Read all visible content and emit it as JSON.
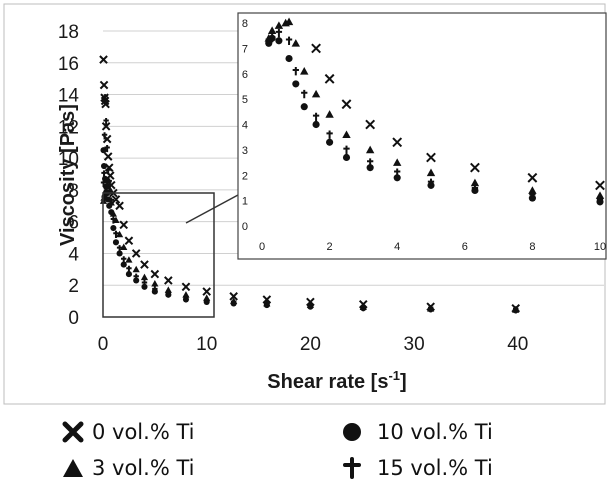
{
  "chart_data": [
    {
      "type": "scatter",
      "title": "",
      "xlabel": "Shear rate [s-1]",
      "xlabel_base": "Shear rate [s",
      "xlabel_sup": "-1",
      "xlabel_tail": "]",
      "ylabel": "Viscosity [Pas]",
      "xlim": [
        0,
        46
      ],
      "ylim": [
        0,
        18
      ],
      "xticks": [
        "0",
        "10",
        "20",
        "30",
        "40"
      ],
      "xtick_values": [
        0,
        10,
        20,
        30,
        40
      ],
      "yticks": [
        "0",
        "2",
        "4",
        "6",
        "8",
        "10",
        "12",
        "14",
        "16",
        "18"
      ],
      "ytick_values": [
        0,
        2,
        4,
        6,
        8,
        10,
        12,
        14,
        16,
        18
      ],
      "grid": "horizontal",
      "series": [
        {
          "name": "0 vol.% Ti",
          "marker": "x",
          "x": [
            0.05,
            0.1,
            0.15,
            0.2,
            0.25,
            0.3,
            0.4,
            0.5,
            0.6,
            0.7,
            0.8,
            1.0,
            1.25,
            1.6,
            2.0,
            2.5,
            3.2,
            4.0,
            5.0,
            6.3,
            8.0,
            10.0,
            12.6,
            15.8,
            20.0,
            25.1,
            31.6,
            39.8
          ],
          "y": [
            16.2,
            14.6,
            13.8,
            13.6,
            13.4,
            12.0,
            11.2,
            10.1,
            9.4,
            8.9,
            8.3,
            7.8,
            7.4,
            7.0,
            5.8,
            4.8,
            4.0,
            3.3,
            2.7,
            2.3,
            1.9,
            1.6,
            1.3,
            1.1,
            0.95,
            0.8,
            0.65,
            0.55
          ]
        },
        {
          "name": "3 vol.% Ti",
          "marker": "triangle",
          "x": [
            0.05,
            0.1,
            0.15,
            0.2,
            0.3,
            0.4,
            0.5,
            0.6,
            0.7,
            0.8,
            1.0,
            1.25,
            1.6,
            2.0,
            2.5,
            3.2,
            4.0,
            5.0,
            6.3,
            8.0,
            10.0,
            12.6,
            15.8,
            20.0,
            25.1,
            31.6,
            39.8
          ],
          "y": [
            7.3,
            7.5,
            7.7,
            7.8,
            8.0,
            8.3,
            8.6,
            7.9,
            8.0,
            7.2,
            6.5,
            6.1,
            5.2,
            4.4,
            3.6,
            3.0,
            2.5,
            2.1,
            1.7,
            1.4,
            1.2,
            1.0,
            0.85,
            0.75,
            0.62,
            0.52,
            0.45
          ]
        },
        {
          "name": "10 vol.% Ti",
          "marker": "circle",
          "x": [
            0.05,
            0.1,
            0.2,
            0.3,
            0.4,
            0.5,
            0.6,
            0.8,
            1.0,
            1.25,
            1.6,
            2.0,
            2.5,
            3.2,
            4.0,
            5.0,
            6.3,
            8.0,
            10.0,
            12.6,
            15.8,
            20.0,
            25.1,
            31.6,
            39.8
          ],
          "y": [
            10.5,
            9.5,
            8.7,
            8.2,
            7.8,
            7.4,
            7.0,
            6.6,
            5.6,
            4.7,
            4.0,
            3.3,
            2.7,
            2.3,
            1.9,
            1.6,
            1.4,
            1.1,
            0.95,
            0.85,
            0.75,
            0.65,
            0.55,
            0.48,
            0.42
          ]
        },
        {
          "name": "15 vol.% Ti",
          "marker": "plus",
          "x": [
            0.05,
            0.1,
            0.15,
            0.2,
            0.3,
            0.4,
            0.5,
            0.6,
            0.8,
            1.0,
            1.25,
            1.6,
            2.0,
            2.5,
            3.2,
            4.0,
            5.0,
            6.3,
            8.0,
            10.0,
            12.6,
            15.8,
            20.0,
            25.1,
            31.6,
            39.8
          ],
          "y": [
            8.4,
            9.0,
            11.4,
            13.8,
            12.3,
            10.6,
            9.2,
            8.5,
            7.3,
            6.1,
            5.2,
            4.3,
            3.6,
            3.0,
            2.5,
            2.1,
            1.7,
            1.45,
            1.2,
            1.0,
            0.9,
            0.8,
            0.7,
            0.6,
            0.52,
            0.45
          ]
        }
      ]
    },
    {
      "type": "scatter",
      "title": "",
      "xlabel": "",
      "ylabel": "",
      "xlim": [
        0,
        10
      ],
      "ylim": [
        0,
        8
      ],
      "xticks": [
        "0",
        "2",
        "4",
        "6",
        "8",
        "10"
      ],
      "xtick_values": [
        0,
        2,
        4,
        6,
        8,
        10
      ],
      "yticks": [
        "0",
        "1",
        "2",
        "3",
        "4",
        "5",
        "6",
        "7",
        "8"
      ],
      "ytick_values": [
        0,
        1,
        2,
        3,
        4,
        5,
        6,
        7,
        8
      ],
      "grid": "none",
      "series": [
        {
          "name": "0 vol.% Ti",
          "marker": "x",
          "x": [
            1.6,
            2.0,
            2.5,
            3.2,
            4.0,
            5.0,
            6.3,
            8.0,
            10.0
          ],
          "y": [
            7.0,
            5.8,
            4.8,
            4.0,
            3.3,
            2.7,
            2.3,
            1.9,
            1.6
          ]
        },
        {
          "name": "3 vol.% Ti",
          "marker": "triangle",
          "x": [
            0.2,
            0.3,
            0.5,
            0.7,
            0.8,
            1.0,
            1.25,
            1.6,
            2.0,
            2.5,
            3.2,
            4.0,
            5.0,
            6.3,
            8.0,
            10.0
          ],
          "y": [
            7.4,
            7.7,
            7.9,
            8.0,
            8.05,
            7.2,
            6.1,
            5.2,
            4.4,
            3.6,
            3.0,
            2.5,
            2.1,
            1.7,
            1.4,
            1.2
          ]
        },
        {
          "name": "10 vol.% Ti",
          "marker": "circle",
          "x": [
            0.2,
            0.3,
            0.5,
            0.8,
            1.0,
            1.25,
            1.6,
            2.0,
            2.5,
            3.2,
            4.0,
            5.0,
            6.3,
            8.0,
            10.0
          ],
          "y": [
            7.2,
            7.4,
            7.3,
            6.6,
            5.6,
            4.7,
            4.0,
            3.3,
            2.7,
            2.3,
            1.9,
            1.6,
            1.4,
            1.1,
            0.95
          ]
        },
        {
          "name": "15 vol.% Ti",
          "marker": "plus",
          "x": [
            0.2,
            0.3,
            0.5,
            0.8,
            1.0,
            1.25,
            1.6,
            2.0,
            2.5,
            3.2,
            4.0,
            5.0,
            6.3,
            8.0,
            10.0
          ],
          "y": [
            7.3,
            7.4,
            7.6,
            7.3,
            6.1,
            5.2,
            4.3,
            3.6,
            3.0,
            2.5,
            2.1,
            1.7,
            1.45,
            1.2,
            1.0
          ]
        }
      ]
    }
  ],
  "legend": {
    "items": [
      {
        "label": "0 vol.% Ti",
        "marker": "x"
      },
      {
        "label": "10 vol.% Ti",
        "marker": "circle"
      },
      {
        "label": "3 vol.% Ti",
        "marker": "triangle"
      },
      {
        "label": "15 vol.% Ti",
        "marker": "plus"
      }
    ]
  },
  "colors": {
    "marker": "#111111",
    "grid": "#d0d0d0",
    "axis_text": "#1a1a1a",
    "frame": "#bdbdbd"
  }
}
